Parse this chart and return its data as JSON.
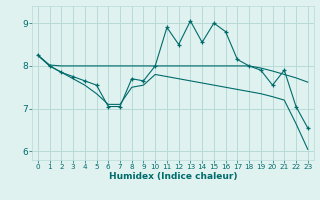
{
  "title": "",
  "xlabel": "Humidex (Indice chaleur)",
  "bg_color": "#dff2f0",
  "grid_color": "#b8dbd8",
  "line_color": "#006b6b",
  "xlim": [
    -0.5,
    23.5
  ],
  "ylim": [
    5.8,
    9.4
  ],
  "yticks": [
    6,
    7,
    8,
    9
  ],
  "xticks": [
    0,
    1,
    2,
    3,
    4,
    5,
    6,
    7,
    8,
    9,
    10,
    11,
    12,
    13,
    14,
    15,
    16,
    17,
    18,
    19,
    20,
    21,
    22,
    23
  ],
  "series1_x": [
    0,
    1,
    2,
    3,
    4,
    5,
    6,
    7,
    8,
    9,
    10,
    11,
    12,
    13,
    14,
    15,
    16,
    17,
    18,
    19,
    20,
    21,
    22,
    23
  ],
  "series1_y": [
    8.25,
    8.0,
    7.85,
    7.75,
    7.65,
    7.55,
    7.05,
    7.05,
    7.7,
    7.65,
    8.0,
    8.9,
    8.5,
    9.05,
    8.55,
    9.0,
    8.8,
    8.15,
    8.0,
    7.9,
    7.55,
    7.9,
    7.05,
    6.55
  ],
  "series2_x": [
    0,
    1,
    2,
    3,
    4,
    5,
    6,
    7,
    8,
    9,
    10,
    11,
    12,
    13,
    14,
    15,
    16,
    17,
    18,
    19,
    20,
    21,
    22,
    23
  ],
  "series2_y": [
    8.25,
    8.02,
    8.0,
    8.0,
    8.0,
    8.0,
    8.0,
    8.0,
    8.0,
    8.0,
    8.0,
    8.0,
    8.0,
    8.0,
    8.0,
    8.0,
    8.0,
    8.0,
    8.0,
    7.95,
    7.88,
    7.8,
    7.72,
    7.62
  ],
  "series3_x": [
    0,
    1,
    2,
    3,
    4,
    5,
    6,
    7,
    8,
    9,
    10,
    11,
    12,
    13,
    14,
    15,
    16,
    17,
    18,
    19,
    20,
    21,
    22,
    23
  ],
  "series3_y": [
    8.25,
    8.0,
    7.85,
    7.7,
    7.55,
    7.35,
    7.1,
    7.1,
    7.5,
    7.55,
    7.8,
    7.75,
    7.7,
    7.65,
    7.6,
    7.55,
    7.5,
    7.45,
    7.4,
    7.35,
    7.28,
    7.2,
    6.65,
    6.05
  ]
}
